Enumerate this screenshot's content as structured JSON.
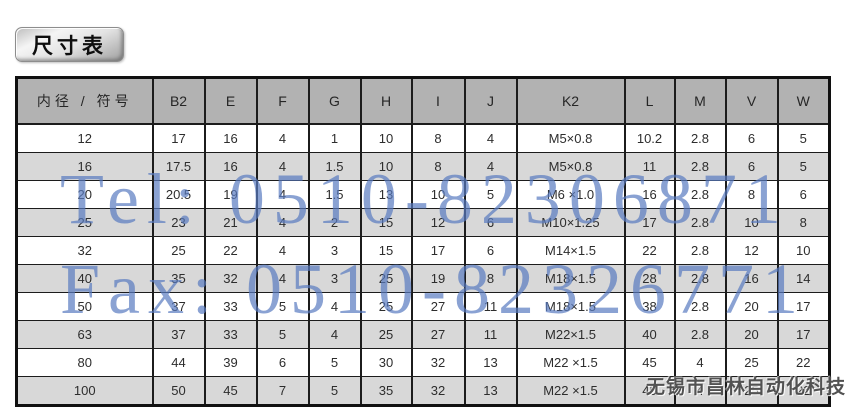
{
  "title": "尺寸表",
  "table": {
    "headers": [
      "内径 / 符号",
      "B2",
      "E",
      "F",
      "G",
      "H",
      "I",
      "J",
      "K2",
      "L",
      "M",
      "V",
      "W"
    ],
    "rows": [
      [
        "12",
        "17",
        "16",
        "4",
        "1",
        "10",
        "8",
        "4",
        "M5×0.8",
        "10.2",
        "2.8",
        "6",
        "5"
      ],
      [
        "16",
        "17.5",
        "16",
        "4",
        "1.5",
        "10",
        "8",
        "4",
        "M5×0.8",
        "11",
        "2.8",
        "6",
        "5"
      ],
      [
        "20",
        "20.5",
        "19",
        "4",
        "1.5",
        "13",
        "10",
        "5",
        "M6 ×1.0",
        "16",
        "2.8",
        "8",
        "6"
      ],
      [
        "25",
        "23",
        "21",
        "4",
        "2",
        "15",
        "12",
        "6",
        "M10×1.25",
        "17",
        "2.8",
        "10",
        "8"
      ],
      [
        "32",
        "25",
        "22",
        "4",
        "3",
        "15",
        "17",
        "6",
        "M14×1.5",
        "22",
        "2.8",
        "12",
        "10"
      ],
      [
        "40",
        "35",
        "32",
        "4",
        "3",
        "25",
        "19",
        "8",
        "M18×1.5",
        "28",
        "2.8",
        "16",
        "14"
      ],
      [
        "50",
        "37",
        "33",
        "5",
        "4",
        "25",
        "27",
        "11",
        "M18×1.5",
        "38",
        "2.8",
        "20",
        "17"
      ],
      [
        "63",
        "37",
        "33",
        "5",
        "4",
        "25",
        "27",
        "11",
        "M22×1.5",
        "40",
        "2.8",
        "20",
        "17"
      ],
      [
        "80",
        "44",
        "39",
        "6",
        "5",
        "30",
        "32",
        "13",
        "M22 ×1.5",
        "45",
        "4",
        "25",
        "22"
      ],
      [
        "100",
        "50",
        "45",
        "7",
        "5",
        "35",
        "32",
        "13",
        "M22 ×1.5",
        "45",
        "4",
        "25",
        "22"
      ]
    ]
  },
  "watermarks": {
    "tel": "Tel: 0510-82306871",
    "fax": "Fax: 0510-82326771",
    "company": "无锡市昌林自动化科技"
  },
  "colors": {
    "header_bg": "#b2b2b2",
    "stripe_bg": "#d8d8d8",
    "table_border": "#1c1c1c",
    "watermark_blue": "#587ac0",
    "company_gray": "#525252"
  }
}
